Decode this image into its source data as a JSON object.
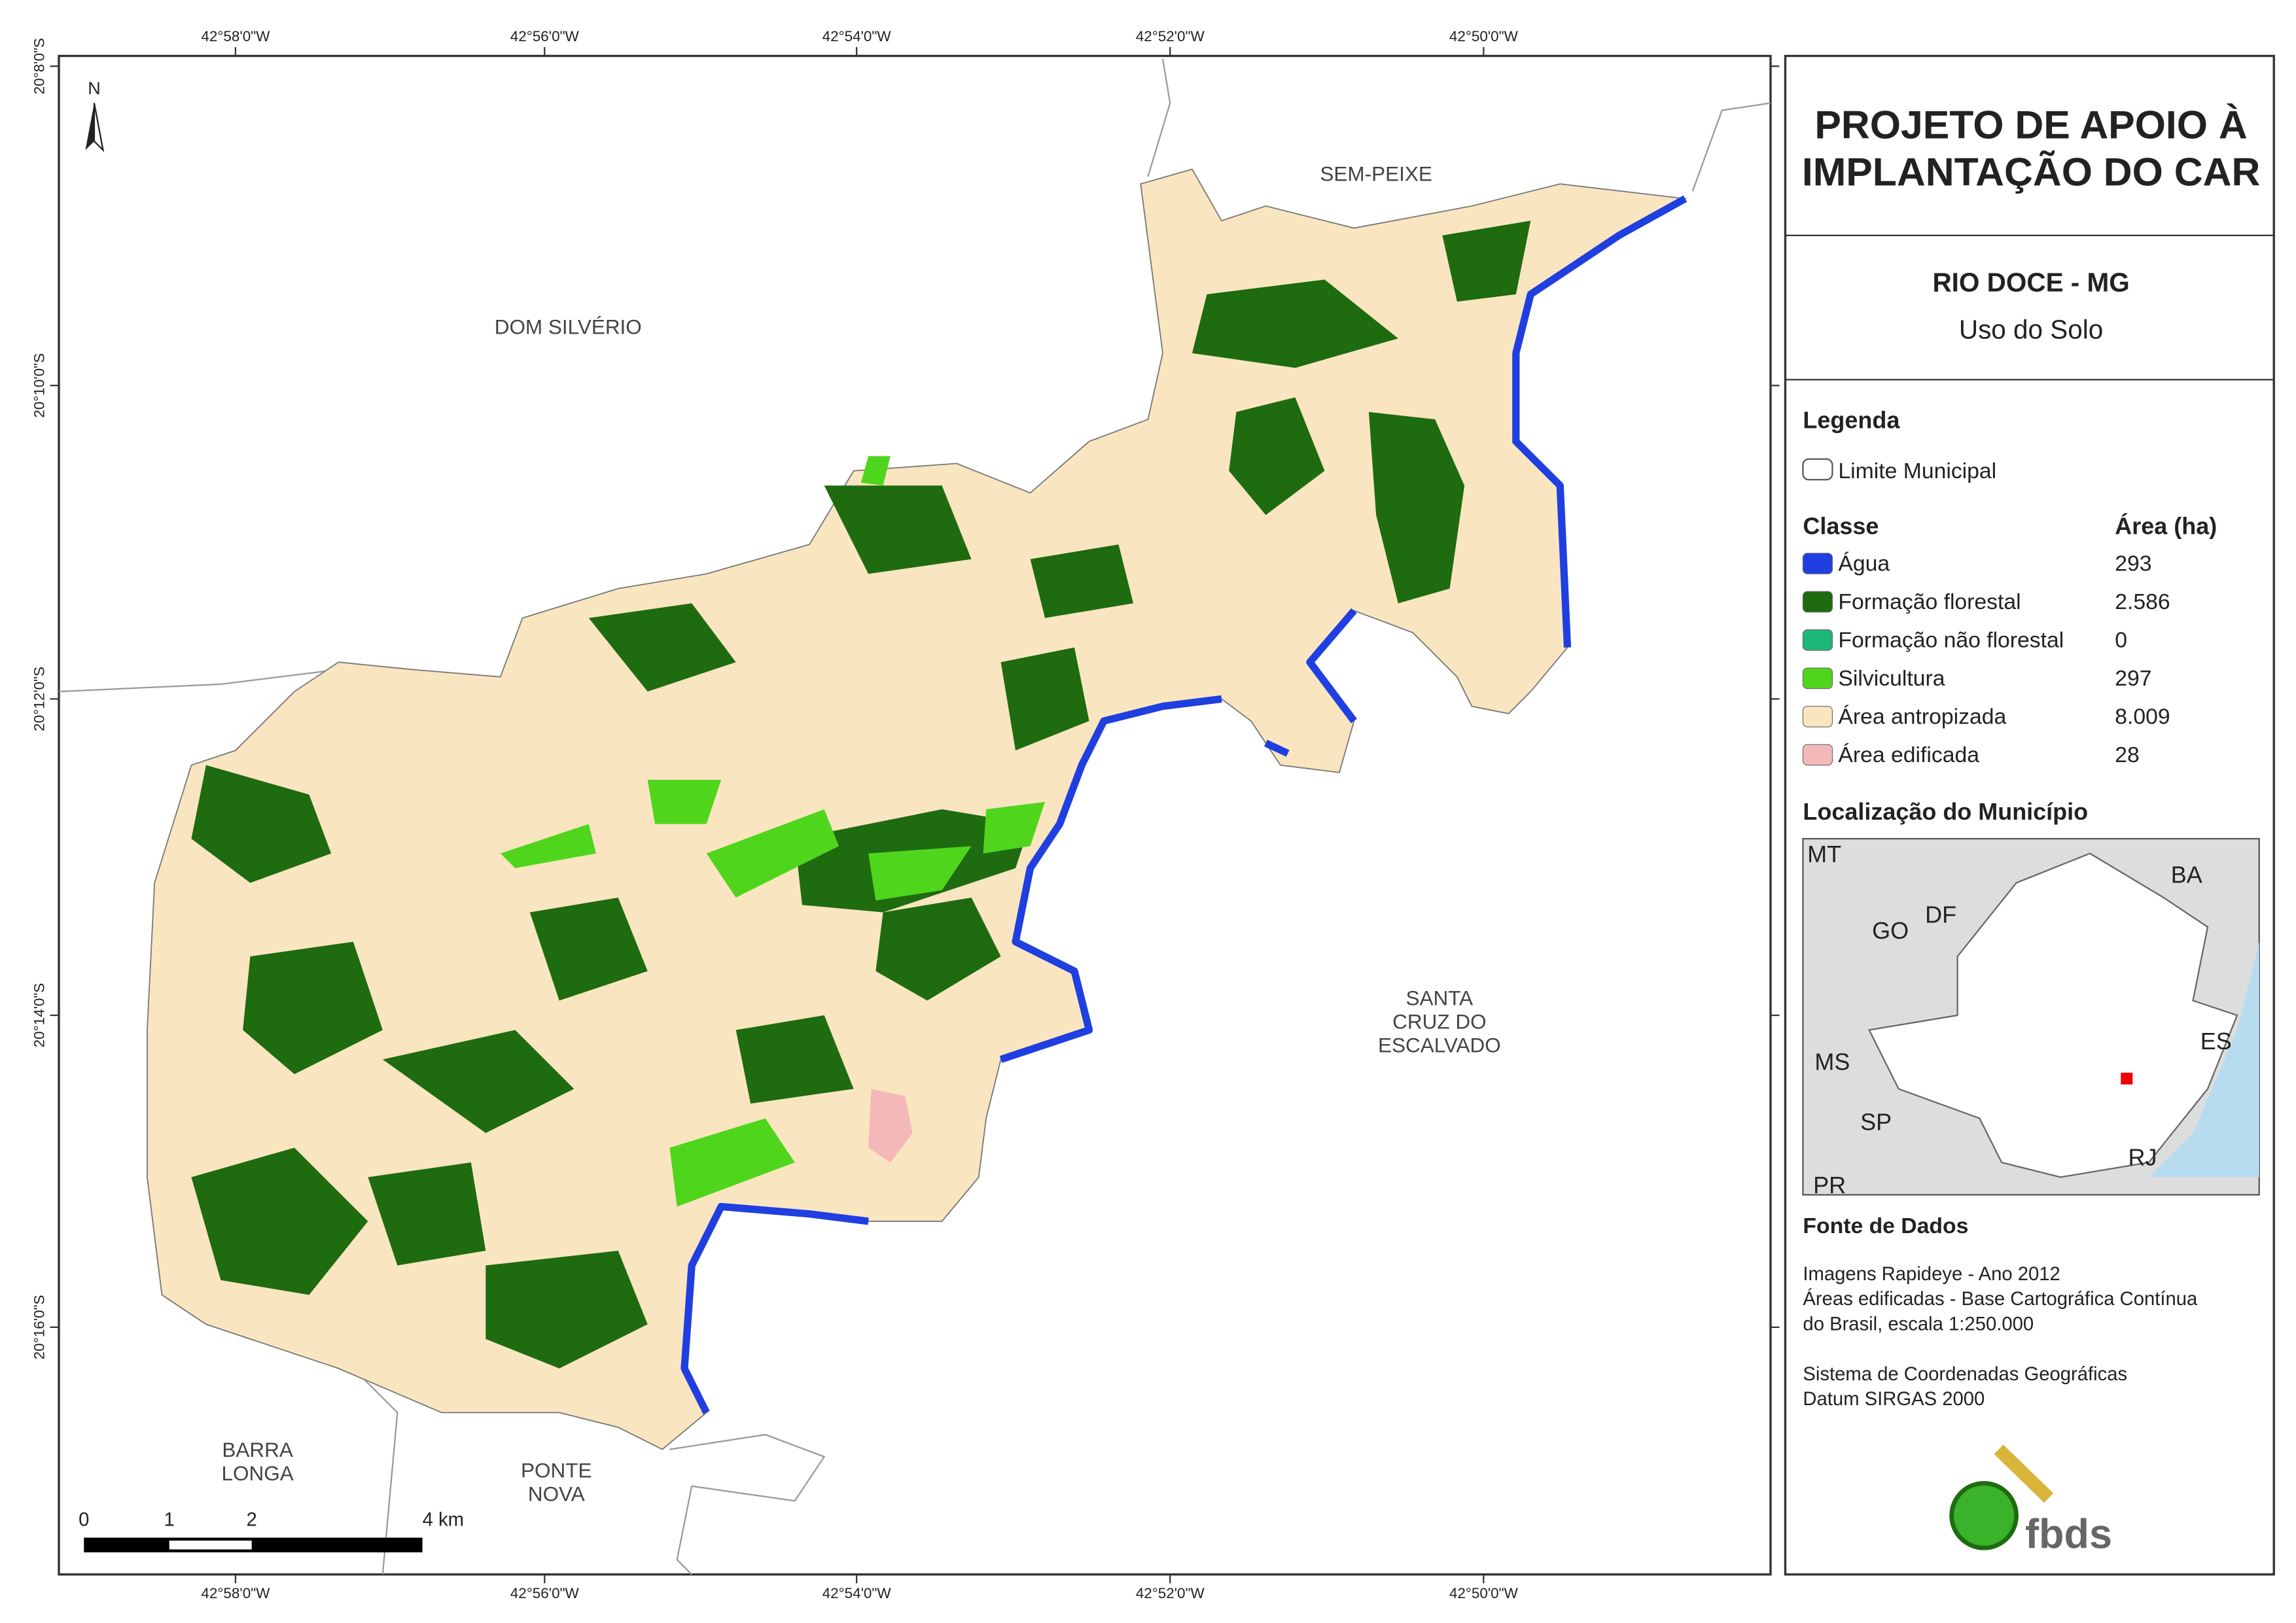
{
  "title": [
    "PROJETO DE APOIO À",
    "IMPLANTAÇÃO DO CAR"
  ],
  "subtitle": "RIO DOCE - MG",
  "theme": "Uso do Solo",
  "north": "N",
  "coords": {
    "x": [
      "42°58'0\"W",
      "42°56'0\"W",
      "42°54'0\"W",
      "42°52'0\"W",
      "42°50'0\"W"
    ],
    "y": [
      "20°8'0\"S",
      "20°10'0\"S",
      "20°12'0\"S",
      "20°14'0\"S",
      "20°16'0\"S"
    ]
  },
  "places": [
    {
      "lines": [
        "SEM-PEIXE"
      ]
    },
    {
      "lines": [
        "DOM SILVÉRIO"
      ]
    },
    {
      "lines": [
        "SANTA",
        "CRUZ DO",
        "ESCALVADO"
      ]
    },
    {
      "lines": [
        "BARRA",
        "LONGA"
      ]
    },
    {
      "lines": [
        "PONTE",
        "NOVA"
      ]
    }
  ],
  "scale": [
    "0",
    "1",
    "2",
    "4 km"
  ],
  "legend": {
    "heading": "Legenda",
    "boundary": "Limite Municipal",
    "class_header": "Classe",
    "area_header": "Área (ha)",
    "items": [
      {
        "name": "Água",
        "area": "293",
        "color": "#1f3fe0"
      },
      {
        "name": "Formação florestal",
        "area": "2.586",
        "color": "#1e6b10"
      },
      {
        "name": "Formação não florestal",
        "area": "0",
        "color": "#1fb67a"
      },
      {
        "name": "Silvicultura",
        "area": "297",
        "color": "#4fd61c"
      },
      {
        "name": "Área antropizada",
        "area": "8.009",
        "color": "#f9e5c0"
      },
      {
        "name": "Área edificada",
        "area": "28",
        "color": "#f5b8b8"
      }
    ]
  },
  "location": {
    "heading": "Localização do Município",
    "labels": [
      "MT",
      "BA",
      "DF",
      "GO",
      "ES",
      "MS",
      "SP",
      "RJ",
      "PR"
    ]
  },
  "source": {
    "heading": "Fonte de Dados",
    "lines": [
      "Imagens Rapideye - Ano 2012",
      "Áreas edificadas - Base Cartográfica Contínua",
      "do Brasil, escala 1:250.000",
      "",
      "Sistema de Coordenadas Geográficas",
      "Datum SIRGAS 2000"
    ]
  },
  "logo": "fbds"
}
